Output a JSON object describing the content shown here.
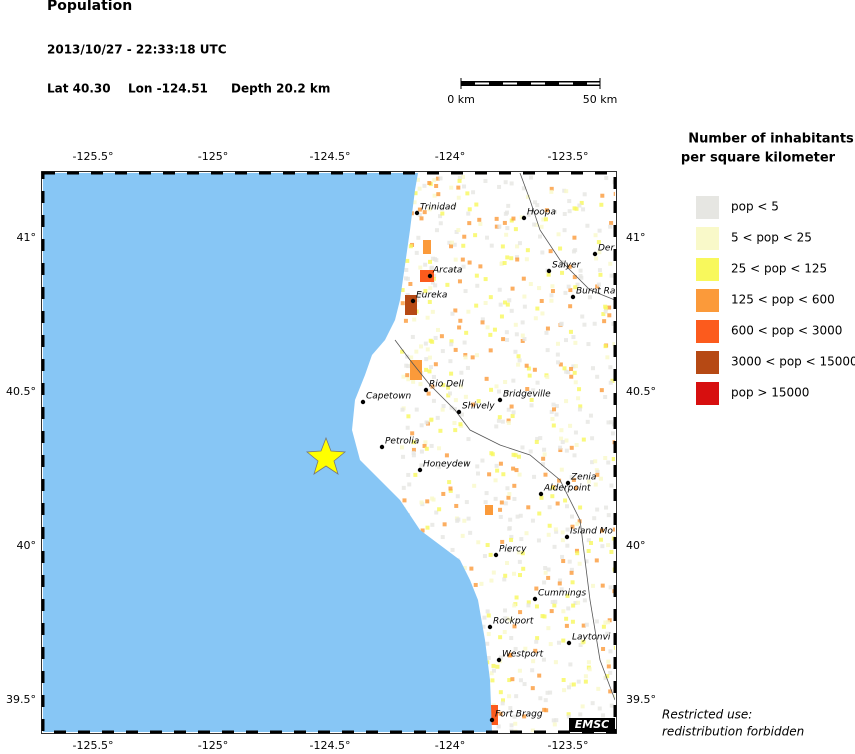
{
  "header": {
    "title": "Population",
    "datetime": "2013/10/27 - 22:33:18 UTC",
    "lat": "Lat 40.30",
    "lon": "Lon -124.51",
    "depth": "Depth  20.2 km"
  },
  "scale_bar": {
    "start": "0 km",
    "end": "50 km"
  },
  "map": {
    "lon_labels": [
      "-125.5°",
      "-125°",
      "-124.5°",
      "-124°",
      "-123.5°"
    ],
    "lat_labels": [
      "41°",
      "40.5°",
      "40°",
      "39.5°"
    ],
    "places": [
      "Trinidad",
      "Hoopa",
      "Der",
      "Arcata",
      "Salyer",
      "Eureka",
      "Burnt Ra",
      "Rio Dell",
      "Bridgeville",
      "Capetown",
      "Shively",
      "Petrolia",
      "Honeydew",
      "Zenia",
      "Alderpoint",
      "Island Mo",
      "Piercy",
      "Cummings",
      "Rockport",
      "Laytonvi",
      "Westport",
      "Fort Bragg"
    ],
    "credit": "EMSC"
  },
  "legend": {
    "title": [
      "Number of inhabitants",
      "per square kilometer"
    ],
    "items": [
      {
        "label": "pop < 5",
        "color": "#e6e6e2"
      },
      {
        "label": "5 < pop < 25",
        "color": "#f9f9c9"
      },
      {
        "label": "25 < pop < 125",
        "color": "#f8f85c"
      },
      {
        "label": "125 < pop < 600",
        "color": "#fb9a3a"
      },
      {
        "label": "600 < pop < 3000",
        "color": "#fc5b1d"
      },
      {
        "label": "3000 < pop < 15000",
        "color": "#b64914"
      },
      {
        "label": "pop > 15000",
        "color": "#d70f0f"
      }
    ]
  },
  "footer": [
    "Restricted use:",
    "redistribution forbidden"
  ]
}
